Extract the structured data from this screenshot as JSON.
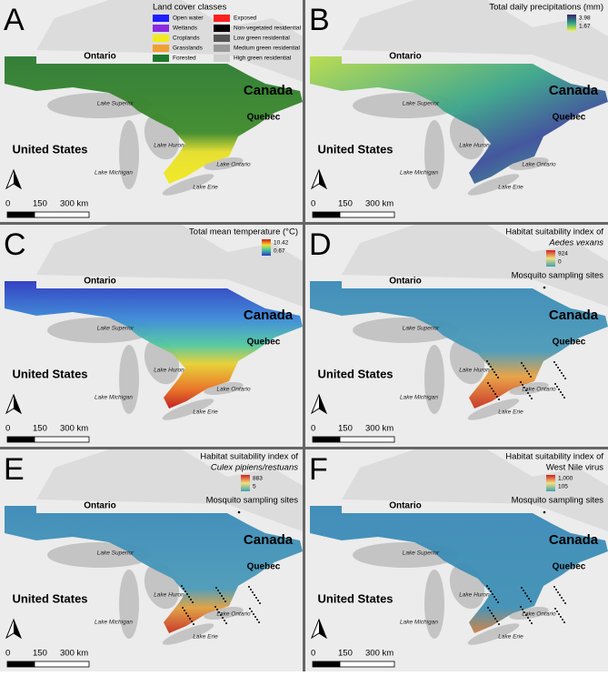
{
  "panels": [
    {
      "letter": "A",
      "legend": {
        "title": "Land cover classes",
        "items": [
          {
            "label": "Open water",
            "color": "#1f1fff"
          },
          {
            "label": "Wetlands",
            "color": "#8a2be2"
          },
          {
            "label": "Croplands",
            "color": "#f2ea1c"
          },
          {
            "label": "Grasslands",
            "color": "#f0a030"
          },
          {
            "label": "Forested",
            "color": "#1e7a2a"
          },
          {
            "label": "Exposed",
            "color": "#ff2020"
          },
          {
            "label": "Non-vegetated residential",
            "color": "#000000"
          },
          {
            "label": "Low green residential",
            "color": "#555555"
          },
          {
            "label": "Medium green residential",
            "color": "#999999"
          },
          {
            "label": "High green residential",
            "color": "#d0d0d0"
          }
        ]
      }
    },
    {
      "letter": "B",
      "legend": {
        "title": "Total daily precipitations (mm)",
        "max": "3.98",
        "min": "1.67"
      }
    },
    {
      "letter": "C",
      "legend": {
        "title": "Total mean temperature (°C)",
        "max": "10.42",
        "min": "0.67"
      }
    },
    {
      "letter": "D",
      "legend": {
        "title": "Habitat suitability index of",
        "species": "Aedes vexans",
        "max": "924",
        "min": "0",
        "sites": "Mosquito sampling sites"
      }
    },
    {
      "letter": "E",
      "legend": {
        "title": "Habitat suitability index of",
        "species": "Culex pipiens/restuans",
        "max": "883",
        "min": "5",
        "sites": "Mosquito sampling sites"
      }
    },
    {
      "letter": "F",
      "legend": {
        "title": "Habitat suitability index of",
        "subject": "West Nile virus",
        "max": "1,000",
        "min": "105",
        "sites": "Mosquito sampling sites"
      }
    }
  ],
  "map_labels": {
    "ontario": "Ontario",
    "canada": "Canada",
    "quebec": "Quebec",
    "united_states": "United States",
    "lake_superior": "Lake Superior",
    "lake_huron": "Lake Huron",
    "lake_michigan": "Lake Michigan",
    "lake_ontario": "Lake Ontario",
    "lake_erie": "Lake Erie"
  },
  "scale_bar": [
    "0",
    "150",
    "300 km"
  ]
}
